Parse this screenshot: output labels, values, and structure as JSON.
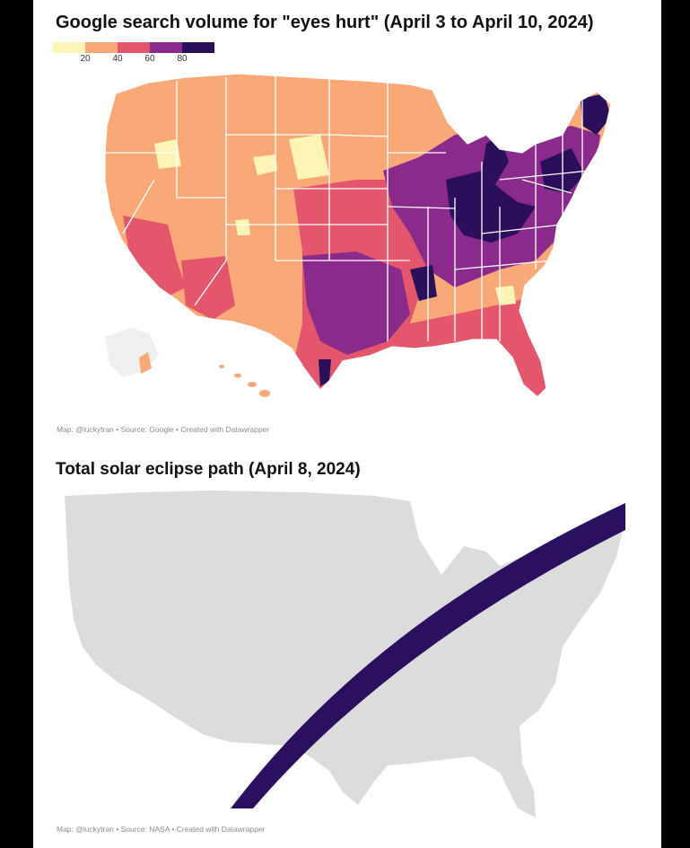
{
  "map1": {
    "title": "Google search volume for \"eyes hurt\" (April 3 to April 10, 2024)",
    "legend": {
      "ticks": [
        "20",
        "40",
        "60",
        "80"
      ],
      "colors": [
        "#fcf5b6",
        "#f9a878",
        "#e3566b",
        "#8a2b8b",
        "#2c0f5a"
      ]
    },
    "credit": "Map: @luckytran • Source: Google • Created with Datawrapper"
  },
  "map2": {
    "title": "Total solar eclipse path (April 8, 2024)",
    "land_color": "#dcdcdc",
    "path_color": "#2b1060",
    "credit": "Map: @luckytran • Source: NASA • Created with Datawrapper"
  }
}
